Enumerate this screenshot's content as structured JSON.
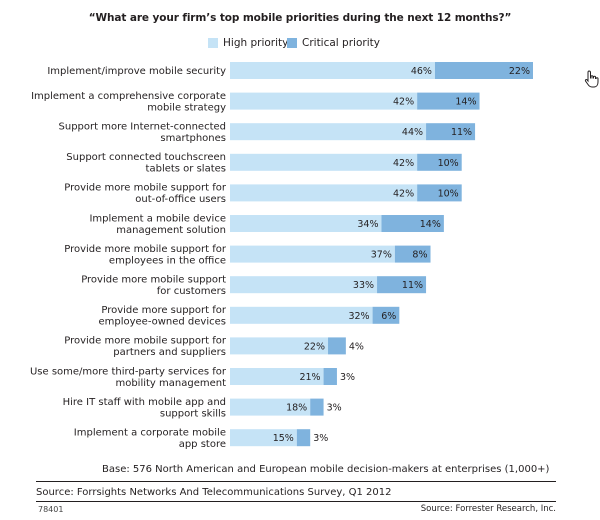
{
  "chart_data": {
    "type": "bar",
    "orientation": "horizontal",
    "stacked": true,
    "title": "“What are your firm’s top mobile priorities during the next 12 months?”",
    "categories": [
      "Implement/improve mobile security",
      "Implement a comprehensive corporate mobile strategy",
      "Support more Internet-connected smartphones",
      "Support connected touchscreen tablets or slates",
      "Provide more mobile support for out-of-office users",
      "Implement a mobile device management solution",
      "Provide more mobile support for employees in the office",
      "Provide more mobile support for customers",
      "Provide more support for employee-owned devices",
      "Provide more mobile support for partners and suppliers",
      "Use some/more third-party services for mobility management",
      "Hire IT staff with mobile app and support skills",
      "Implement a corporate mobile app store"
    ],
    "category_lines": [
      [
        "Implement/improve mobile security"
      ],
      [
        "Implement a comprehensive corporate",
        "mobile strategy"
      ],
      [
        "Support more Internet-connected",
        "smartphones"
      ],
      [
        "Support connected touchscreen",
        "tablets or slates"
      ],
      [
        "Provide more mobile support for",
        "out-of-office users"
      ],
      [
        "Implement a mobile device",
        "management solution"
      ],
      [
        "Provide more mobile support for",
        "employees in the office"
      ],
      [
        "Provide more mobile support",
        "for customers"
      ],
      [
        "Provide more support for",
        "employee-owned devices"
      ],
      [
        "Provide more mobile support for",
        "partners and suppliers"
      ],
      [
        "Use some/more third-party services for",
        "mobility management"
      ],
      [
        "Hire IT staff with mobile app and",
        "support skills"
      ],
      [
        "Implement a corporate mobile",
        "app store"
      ]
    ],
    "series": [
      {
        "name": "High priority",
        "color": "#c5e3f6",
        "values": [
          46,
          42,
          44,
          42,
          42,
          34,
          37,
          33,
          32,
          22,
          21,
          18,
          15
        ]
      },
      {
        "name": "Critical priority",
        "color": "#7fb3de",
        "values": [
          22,
          14,
          11,
          10,
          10,
          14,
          8,
          11,
          6,
          4,
          3,
          3,
          3
        ]
      }
    ],
    "value_suffix": "%",
    "xlim": [
      0,
      70
    ],
    "grid": false,
    "legend_position": "top"
  },
  "notes": {
    "base": "Base: 576 North American and European mobile decision-makers at enterprises (1,000+)",
    "source_left": "Source: Forrsights Networks And Telecommunications Survey, Q1 2012",
    "figure_id": "78401",
    "source_right": "Source: Forrester Research, Inc."
  },
  "cursor_icon": "hand-pointer-icon"
}
